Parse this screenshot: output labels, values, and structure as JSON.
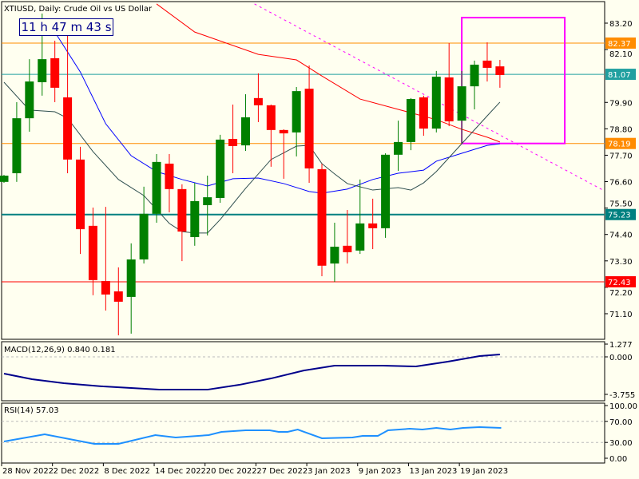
{
  "chart_data": {
    "type": "candlestick",
    "title": "XTIUSD, Daily:  Crude Oil vs US Dollar",
    "countdown": "11 h 47 m 43 s",
    "ylim": [
      69.9,
      84.2
    ],
    "y_ticks": [
      "83.20",
      "82.10",
      "79.90",
      "78.80",
      "77.70",
      "76.60",
      "75.50",
      "74.40",
      "73.30",
      "72.20",
      "71.10"
    ],
    "x_labels": [
      {
        "label": "28 Nov 2022",
        "bar": 1
      },
      {
        "label": "2 Dec 2022",
        "bar": 5
      },
      {
        "label": "8 Dec 2022",
        "bar": 9
      },
      {
        "label": "14 Dec 2022",
        "bar": 13
      },
      {
        "label": "20 Dec 2022",
        "bar": 17
      },
      {
        "label": "27 Dec 2022",
        "bar": 21
      },
      {
        "label": "3 Jan 2023",
        "bar": 25
      },
      {
        "label": "9 Jan 2023",
        "bar": 29
      },
      {
        "label": "13 Jan 2023",
        "bar": 33
      },
      {
        "label": "19 Jan 2023",
        "bar": 37
      }
    ],
    "colors": {
      "bull": "#008000",
      "bear": "#ff0000",
      "background": "#fffff0",
      "ma_slow": "#ff0000",
      "ma_mid": "#0000ff",
      "ma_fast": "#2f4f4f",
      "macd": "#00008b",
      "rsi": "#1e90ff",
      "rectangle": "#ff00ff",
      "trendline": "#ff00ff"
    },
    "ohlc": [
      [
        76.59,
        76.88,
        76.55,
        76.85
      ],
      [
        76.95,
        79.91,
        76.59,
        79.24
      ],
      [
        79.24,
        81.7,
        78.68,
        80.77
      ],
      [
        80.74,
        83.6,
        80.18,
        81.7
      ],
      [
        81.74,
        82.47,
        79.91,
        80.51
      ],
      [
        80.11,
        83.0,
        76.95,
        77.52
      ],
      [
        77.52,
        78.05,
        73.59,
        74.62
      ],
      [
        74.76,
        75.52,
        71.87,
        72.5
      ],
      [
        72.46,
        75.55,
        71.23,
        71.9
      ],
      [
        72.03,
        73.03,
        70.2,
        71.6
      ],
      [
        71.8,
        74.03,
        70.27,
        73.36
      ],
      [
        73.36,
        76.39,
        73.19,
        75.26
      ],
      [
        75.26,
        77.75,
        74.89,
        77.42
      ],
      [
        77.35,
        77.75,
        75.32,
        76.29
      ],
      [
        76.29,
        76.49,
        73.29,
        74.52
      ],
      [
        74.29,
        76.55,
        73.93,
        75.79
      ],
      [
        75.62,
        76.85,
        74.36,
        75.95
      ],
      [
        75.92,
        78.55,
        75.72,
        78.35
      ],
      [
        78.38,
        79.81,
        76.95,
        78.08
      ],
      [
        78.11,
        80.24,
        77.88,
        79.28
      ],
      [
        80.08,
        81.11,
        79.08,
        79.78
      ],
      [
        79.78,
        79.81,
        77.22,
        78.75
      ],
      [
        78.75,
        78.78,
        76.72,
        78.61
      ],
      [
        78.65,
        80.54,
        77.65,
        80.37
      ],
      [
        80.47,
        81.44,
        76.55,
        77.15
      ],
      [
        77.12,
        77.35,
        72.66,
        73.1
      ],
      [
        73.19,
        74.89,
        72.43,
        73.89
      ],
      [
        73.93,
        75.42,
        73.19,
        73.66
      ],
      [
        73.73,
        76.69,
        73.59,
        74.86
      ],
      [
        74.86,
        75.89,
        73.79,
        74.66
      ],
      [
        74.66,
        77.78,
        74.26,
        77.72
      ],
      [
        77.72,
        79.14,
        77.05,
        78.25
      ],
      [
        78.25,
        80.08,
        77.91,
        80.04
      ],
      [
        80.11,
        80.18,
        78.51,
        78.81
      ],
      [
        78.81,
        81.21,
        78.65,
        80.97
      ],
      [
        80.94,
        82.37,
        78.91,
        79.11
      ],
      [
        79.14,
        81.21,
        78.18,
        80.57
      ],
      [
        80.57,
        81.64,
        79.61,
        81.47
      ],
      [
        81.64,
        82.4,
        80.77,
        81.34
      ],
      [
        81.4,
        81.67,
        80.51,
        81.04
      ]
    ],
    "moving_averages": [
      {
        "color": "#ff0000",
        "points": [
          [
            13,
            84.0
          ],
          [
            16,
            82.83
          ],
          [
            21,
            81.9
          ],
          [
            24,
            81.67
          ],
          [
            26,
            81.0
          ],
          [
            29,
            80.04
          ],
          [
            32,
            79.61
          ],
          [
            35,
            79.18
          ],
          [
            37,
            78.78
          ],
          [
            39,
            78.45
          ],
          [
            40,
            78.25
          ]
        ]
      },
      {
        "color": "#0000ff",
        "points": [
          [
            5,
            82.83
          ],
          [
            7,
            81.17
          ],
          [
            9,
            79.01
          ],
          [
            11,
            77.68
          ],
          [
            13,
            77.02
          ],
          [
            15,
            76.69
          ],
          [
            17,
            76.42
          ],
          [
            19,
            76.72
          ],
          [
            21,
            76.75
          ],
          [
            23,
            76.52
          ],
          [
            25,
            76.19
          ],
          [
            26,
            76.12
          ],
          [
            28,
            76.29
          ],
          [
            30,
            76.69
          ],
          [
            32,
            76.95
          ],
          [
            34,
            77.08
          ],
          [
            35,
            77.45
          ],
          [
            37,
            77.78
          ],
          [
            39,
            78.11
          ],
          [
            40,
            78.18
          ]
        ]
      },
      {
        "color": "#2f4f4f",
        "points": [
          [
            1,
            80.74
          ],
          [
            3,
            79.58
          ],
          [
            5,
            79.51
          ],
          [
            6,
            79.24
          ],
          [
            8,
            77.85
          ],
          [
            10,
            76.69
          ],
          [
            12,
            76.02
          ],
          [
            14,
            74.86
          ],
          [
            15,
            74.52
          ],
          [
            16,
            74.46
          ],
          [
            17,
            74.46
          ],
          [
            18,
            75.02
          ],
          [
            20,
            76.32
          ],
          [
            22,
            77.52
          ],
          [
            24,
            78.08
          ],
          [
            25,
            78.11
          ],
          [
            26,
            77.35
          ],
          [
            27,
            76.92
          ],
          [
            28,
            76.52
          ],
          [
            30,
            76.25
          ],
          [
            32,
            76.35
          ],
          [
            33,
            76.25
          ],
          [
            34,
            76.55
          ],
          [
            35,
            77.02
          ],
          [
            37,
            78.18
          ],
          [
            39,
            79.34
          ],
          [
            40,
            79.91
          ]
        ]
      }
    ],
    "levels": [
      {
        "price": 82.37,
        "label": "82.37",
        "color": "#ff8c00",
        "width": 1
      },
      {
        "price": 81.07,
        "label": "81.07",
        "color": "#20a0a0",
        "width": 1
      },
      {
        "price": 78.19,
        "label": "78.19",
        "color": "#ff8c00",
        "width": 1
      },
      {
        "price": 75.23,
        "label": "75.23",
        "color": "#008080",
        "width": 2
      },
      {
        "price": 72.43,
        "label": "72.43",
        "color": "#ff0000",
        "width": 1
      }
    ],
    "rectangle": {
      "bar_from": 37,
      "bar_to": 45.1,
      "price_top": 83.43,
      "price_bottom": 78.19
    },
    "trendline": {
      "bar_from": 20.7,
      "price_from": 84.0,
      "bar_to": 48.1,
      "price_to": 76.25
    },
    "macd": {
      "label": "MACD(12,26,9) 0.840 0.181",
      "ylim": [
        -3.755,
        1.277
      ],
      "ticks": [
        "1.277",
        "0.000",
        "-3.755"
      ],
      "points": [
        [
          1,
          -1.68
        ],
        [
          3.2,
          -2.24
        ],
        [
          5.7,
          -2.64
        ],
        [
          8.8,
          -2.96
        ],
        [
          13.2,
          -3.28
        ],
        [
          17,
          -3.28
        ],
        [
          19.5,
          -2.8
        ],
        [
          22,
          -2.16
        ],
        [
          24.6,
          -1.36
        ],
        [
          27,
          -0.88
        ],
        [
          30.8,
          -0.88
        ],
        [
          33.4,
          -0.96
        ],
        [
          35.9,
          -0.48
        ],
        [
          38.4,
          0.08
        ],
        [
          40,
          0.24
        ]
      ]
    },
    "rsi": {
      "label": "RSI(14) 57.03",
      "ylim": [
        0,
        100
      ],
      "ticks": [
        "100.00",
        "70.00",
        "30.00",
        "0.00"
      ],
      "levels": [
        70,
        30
      ],
      "points": [
        [
          1,
          31.8
        ],
        [
          4.2,
          45.5
        ],
        [
          8.1,
          27.3
        ],
        [
          10,
          27.3
        ],
        [
          12.9,
          43.9
        ],
        [
          14.5,
          39.4
        ],
        [
          17.1,
          43.9
        ],
        [
          18.1,
          50
        ],
        [
          20,
          53
        ],
        [
          21.9,
          53
        ],
        [
          22.6,
          50
        ],
        [
          23.3,
          50
        ],
        [
          24.1,
          54.5
        ],
        [
          26,
          37.9
        ],
        [
          28.4,
          39.4
        ],
        [
          29.2,
          42.4
        ],
        [
          30.4,
          42.4
        ],
        [
          31.2,
          53
        ],
        [
          32.9,
          56
        ],
        [
          33.9,
          54.5
        ],
        [
          35,
          57.6
        ],
        [
          36.1,
          54.5
        ],
        [
          37.1,
          57.6
        ],
        [
          38.4,
          59
        ],
        [
          40.1,
          57.6
        ]
      ]
    }
  }
}
